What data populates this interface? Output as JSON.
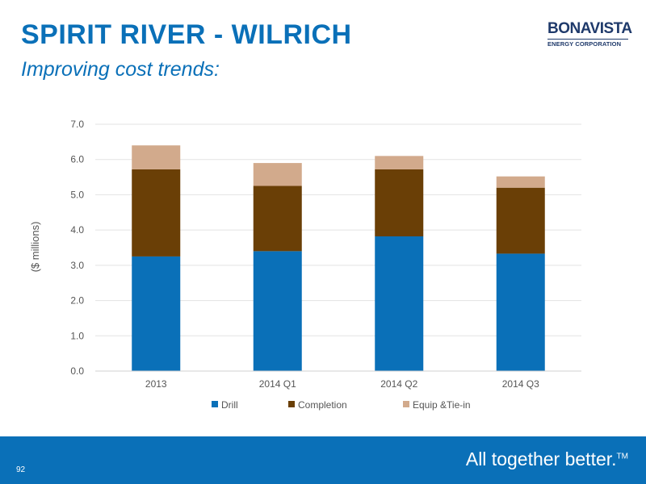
{
  "slide": {
    "title": "SPIRIT RIVER - WILRICH",
    "subtitle": "Improving cost trends:",
    "logo_name": "BONAVISTA",
    "logo_sub": "ENERGY CORPORATION",
    "tagline": "All together better.",
    "tagline_mark": "TM",
    "page_number": "92"
  },
  "chart_data": {
    "type": "bar",
    "stacked": true,
    "categories": [
      "2013",
      "2014 Q1",
      "2014 Q2",
      "2014 Q3"
    ],
    "series": [
      {
        "name": "Drill",
        "color": "#0a70b8",
        "values": [
          3.25,
          3.4,
          3.82,
          3.33
        ]
      },
      {
        "name": "Completion",
        "color": "#6a3f06",
        "values": [
          2.47,
          1.85,
          1.9,
          1.87
        ]
      },
      {
        "name": "Equip &Tie-in",
        "color": "#d2aa8c",
        "values": [
          0.68,
          0.65,
          0.38,
          0.32
        ]
      }
    ],
    "ylabel": "($ millions)",
    "xlabel": "",
    "ylim": [
      0,
      7
    ],
    "yticks": [
      "0.0",
      "1.0",
      "2.0",
      "3.0",
      "4.0",
      "5.0",
      "6.0",
      "7.0"
    ],
    "grid": true,
    "legend": "bottom"
  }
}
